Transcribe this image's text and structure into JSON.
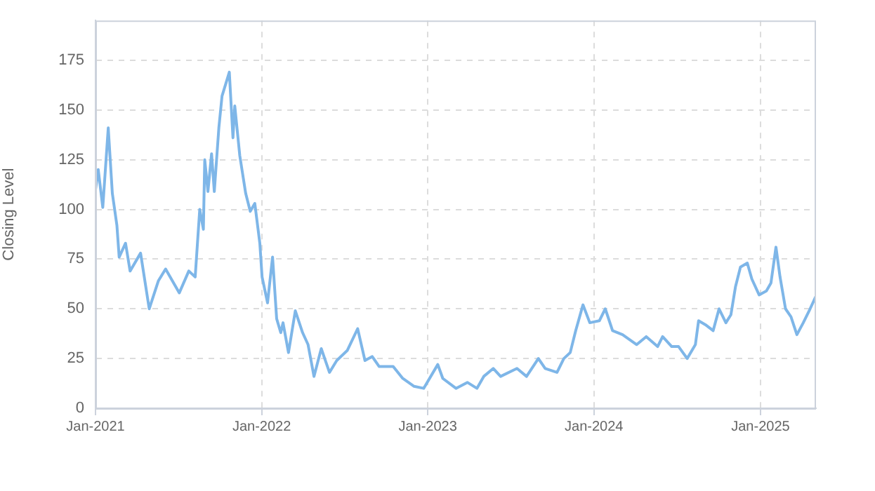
{
  "chart_data": {
    "type": "line",
    "ylabel": "Closing Level",
    "x": [
      "2021-01-01",
      "2021-01-07",
      "2021-01-17",
      "2021-01-29",
      "2021-02-07",
      "2021-02-17",
      "2021-02-22",
      "2021-03-08",
      "2021-03-18",
      "2021-04-10",
      "2021-04-29",
      "2021-05-19",
      "2021-06-04",
      "2021-07-04",
      "2021-07-25",
      "2021-08-08",
      "2021-08-18",
      "2021-08-26",
      "2021-08-29",
      "2021-09-05",
      "2021-09-13",
      "2021-09-19",
      "2021-09-29",
      "2021-10-06",
      "2021-10-22",
      "2021-10-30",
      "2021-11-03",
      "2021-11-14",
      "2021-11-27",
      "2021-12-07",
      "2021-12-17",
      "2021-12-28",
      "2022-01-02",
      "2022-01-14",
      "2022-01-25",
      "2022-02-03",
      "2022-02-12",
      "2022-02-17",
      "2022-03-01",
      "2022-03-16",
      "2022-04-01",
      "2022-04-13",
      "2022-04-26",
      "2022-05-12",
      "2022-05-30",
      "2022-06-15",
      "2022-07-08",
      "2022-07-31",
      "2022-08-16",
      "2022-09-01",
      "2022-09-16",
      "2022-10-17",
      "2022-11-07",
      "2022-12-02",
      "2022-12-23",
      "2023-01-23",
      "2023-02-03",
      "2023-03-04",
      "2023-03-29",
      "2023-04-19",
      "2023-05-04",
      "2023-05-25",
      "2023-06-10",
      "2023-07-16",
      "2023-08-06",
      "2023-09-01",
      "2023-09-16",
      "2023-10-12",
      "2023-10-27",
      "2023-11-10",
      "2023-11-22",
      "2023-12-08",
      "2023-12-23",
      "2024-01-13",
      "2024-01-26",
      "2024-02-11",
      "2024-03-04",
      "2024-04-04",
      "2024-04-25",
      "2024-05-20",
      "2024-05-31",
      "2024-06-20",
      "2024-07-05",
      "2024-07-24",
      "2024-08-11",
      "2024-08-18",
      "2024-09-02",
      "2024-09-19",
      "2024-10-02",
      "2024-10-17",
      "2024-10-28",
      "2024-11-07",
      "2024-11-18",
      "2024-12-03",
      "2024-12-13",
      "2024-12-29",
      "2025-01-14",
      "2025-01-24",
      "2025-02-04",
      "2025-02-13",
      "2025-02-25",
      "2025-03-09",
      "2025-03-22",
      "2025-04-05",
      "2025-04-20",
      "2025-05-02"
    ],
    "series": [
      {
        "color": "#7eb6e8",
        "values": [
          110,
          120,
          101,
          141,
          108,
          92,
          76,
          83,
          69,
          78,
          50,
          64,
          70,
          58,
          69,
          66,
          100,
          90,
          125,
          109,
          128,
          109,
          141,
          157,
          169,
          136,
          152,
          127,
          108,
          99,
          103,
          83,
          66,
          53,
          76,
          45,
          38,
          43,
          28,
          49,
          38,
          32,
          16,
          30,
          18,
          24,
          29,
          40,
          24,
          26,
          21,
          21,
          15,
          11,
          10,
          22,
          15,
          10,
          13,
          10,
          16,
          20,
          16,
          20,
          16,
          25,
          20,
          18,
          25,
          28,
          39,
          52,
          43,
          44,
          50,
          39,
          37,
          32,
          36,
          31,
          36,
          31,
          31,
          25,
          32,
          44,
          42,
          39,
          50,
          43,
          47,
          61,
          71,
          73,
          65,
          57,
          59,
          63,
          81,
          66,
          50,
          46,
          37,
          43,
          50,
          56
        ]
      }
    ],
    "xlim": [
      "2021-01-01",
      "2025-05-03"
    ],
    "xticks": [
      {
        "value": "2021-01-01",
        "label": "Jan-2021"
      },
      {
        "value": "2022-01-01",
        "label": "Jan-2022"
      },
      {
        "value": "2023-01-01",
        "label": "Jan-2023"
      },
      {
        "value": "2024-01-01",
        "label": "Jan-2024"
      },
      {
        "value": "2025-01-01",
        "label": "Jan-2025"
      }
    ],
    "ylim": [
      0,
      195
    ],
    "yticks": [
      0,
      25,
      50,
      75,
      100,
      125,
      150,
      175
    ],
    "grid": true,
    "legend": false,
    "marker": "none",
    "line_style": "solid"
  }
}
